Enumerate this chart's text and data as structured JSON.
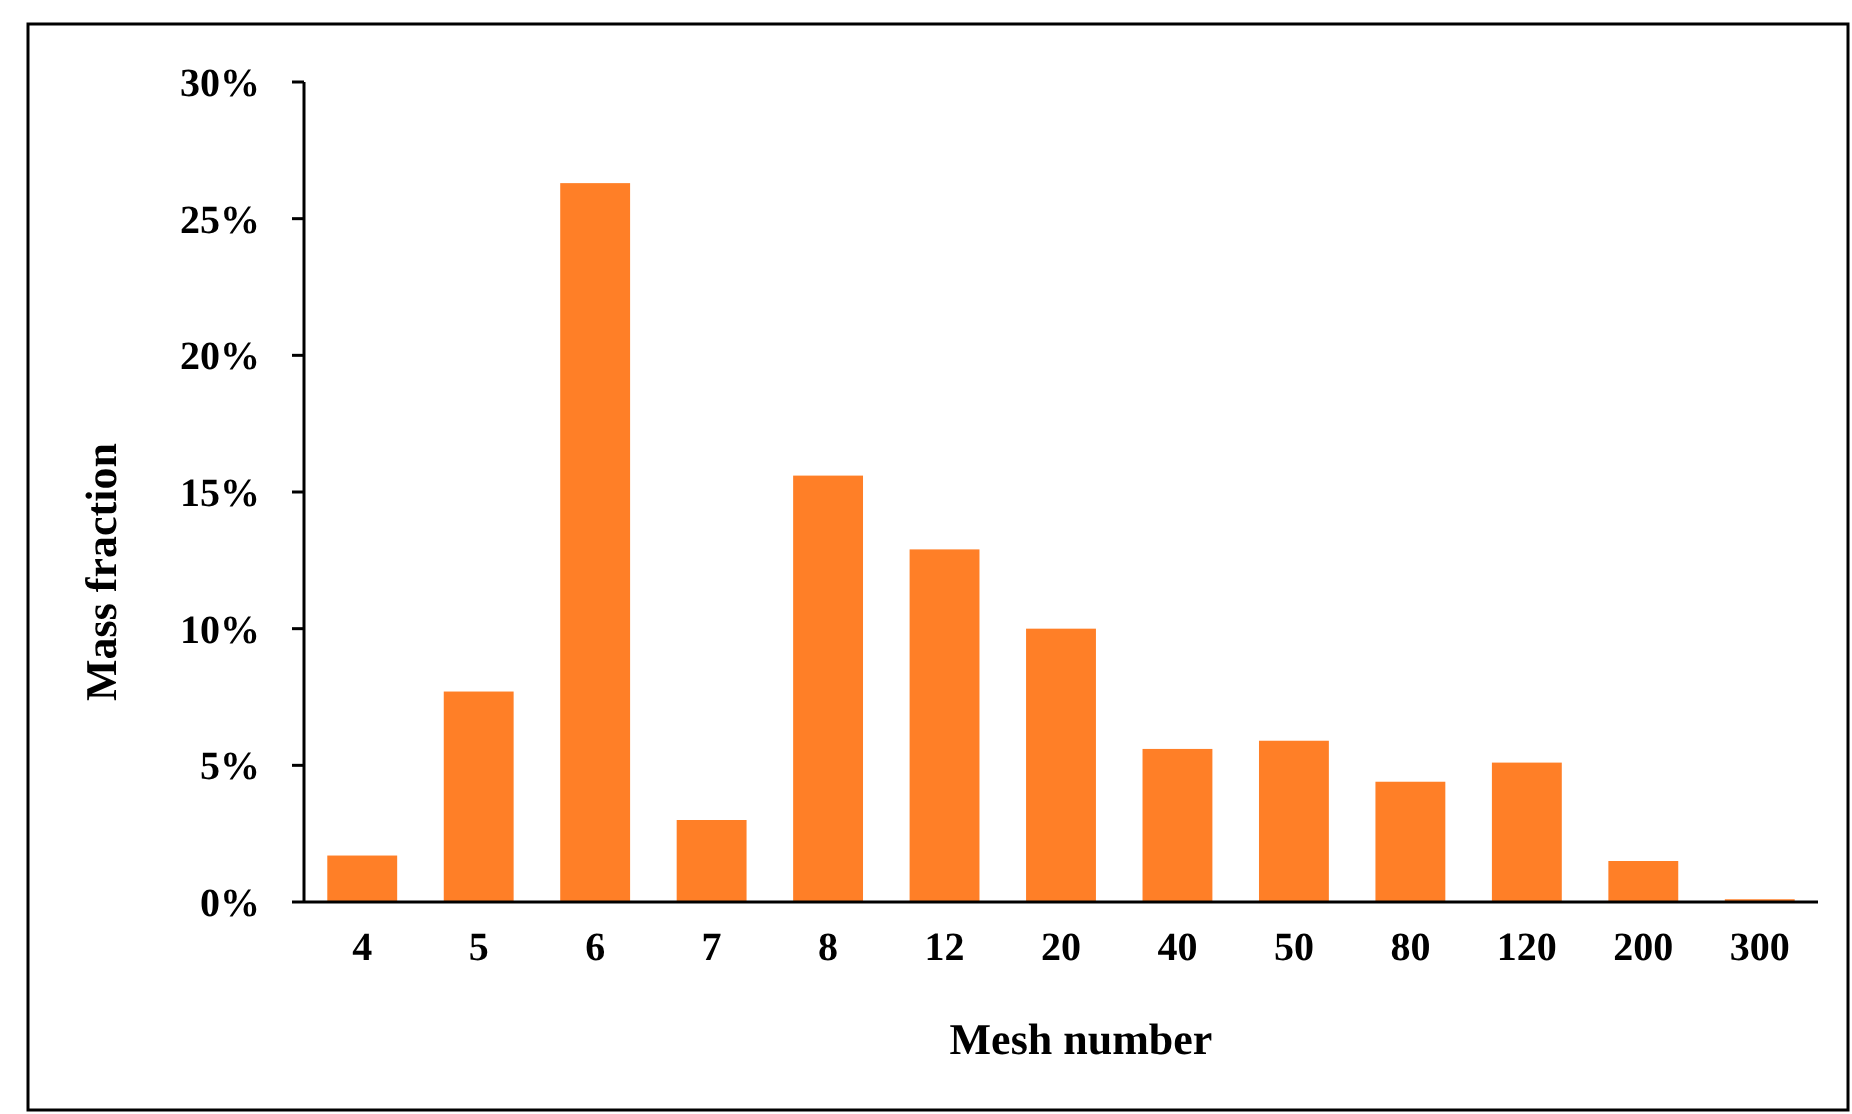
{
  "chart_data": {
    "type": "bar",
    "xlabel": "Mesh number",
    "ylabel": "Mass fraction",
    "categories": [
      "4",
      "5",
      "6",
      "7",
      "8",
      "12",
      "20",
      "40",
      "50",
      "80",
      "120",
      "200",
      "300"
    ],
    "values": [
      1.7,
      7.7,
      26.3,
      3.0,
      15.6,
      12.9,
      10.0,
      5.6,
      5.9,
      4.4,
      5.1,
      1.5,
      0.1
    ],
    "color": "#ff7f27",
    "ylim": [
      0,
      30
    ],
    "yticks": [
      {
        "value": 0,
        "label": "0%"
      },
      {
        "value": 5,
        "label": "5%"
      },
      {
        "value": 10,
        "label": "10%"
      },
      {
        "value": 15,
        "label": "15%"
      },
      {
        "value": 20,
        "label": "20%"
      },
      {
        "value": 25,
        "label": "25%"
      },
      {
        "value": 30,
        "label": "30%"
      }
    ],
    "grid": false
  }
}
